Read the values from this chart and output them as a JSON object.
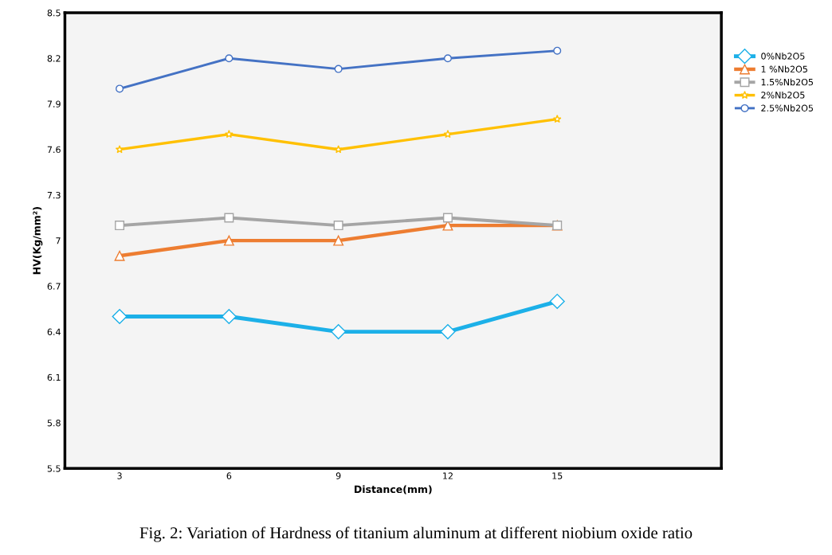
{
  "chart_data": {
    "type": "line",
    "xlabel": "Distance(mm)",
    "ylabel": "HV(Kg/mm²)",
    "x": [
      3,
      6,
      9,
      12,
      15
    ],
    "xlim": [
      1.5,
      19.5
    ],
    "xticks": [
      3,
      6,
      9,
      12,
      15
    ],
    "ylim": [
      5.5,
      8.5
    ],
    "yticks": [
      5.5,
      5.8,
      6.1,
      6.4,
      6.7,
      7,
      7.3,
      7.6,
      7.9,
      8.2,
      8.5
    ],
    "grid": false,
    "legend": "top right",
    "series": [
      {
        "name": "0%Nb2O5",
        "color": "#1cb0e8",
        "marker": "diamond",
        "values": [
          6.5,
          6.5,
          6.4,
          6.4,
          6.6
        ]
      },
      {
        "name": "1 %Nb2O5",
        "color": "#ed7d31",
        "marker": "triangle",
        "values": [
          6.9,
          7.0,
          7.0,
          7.1,
          7.1
        ]
      },
      {
        "name": "1.5%Nb2O5",
        "color": "#a5a5a5",
        "marker": "square",
        "values": [
          7.1,
          7.15,
          7.1,
          7.15,
          7.1
        ]
      },
      {
        "name": "2%Nb2O5",
        "color": "#ffc000",
        "marker": "star",
        "values": [
          7.6,
          7.7,
          7.6,
          7.7,
          7.8
        ]
      },
      {
        "name": "2.5%Nb2O5",
        "color": "#4472c4",
        "marker": "circle",
        "values": [
          8.0,
          8.2,
          8.13,
          8.2,
          8.25
        ]
      }
    ],
    "annotations": [
      "Fig. 2: Variation of Hardness of titanium aluminum at different niobium oxide ratio"
    ]
  }
}
